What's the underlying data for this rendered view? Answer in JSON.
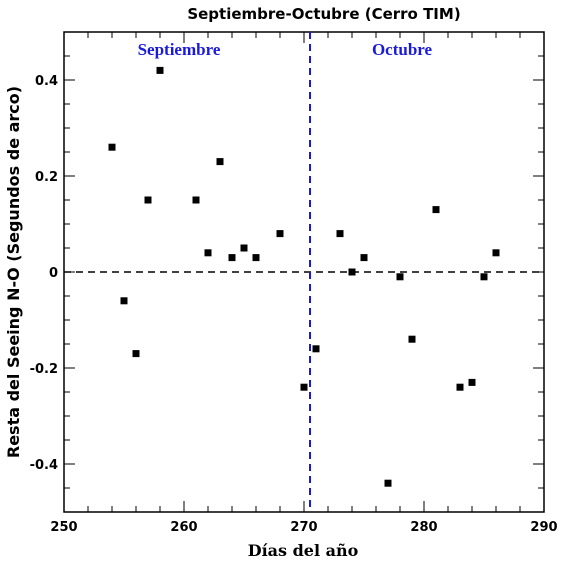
{
  "chart_data": {
    "type": "scatter",
    "title": "Septiembre-Octubre (Cerro TIM)",
    "xlabel": "Días del año",
    "ylabel": "Resta del Seeing N-O (Segundos de arco)",
    "xlim": [
      250,
      290
    ],
    "ylim": [
      -0.5,
      0.5
    ],
    "xticks": [
      250,
      260,
      270,
      280,
      290
    ],
    "xtick_labels": [
      "250",
      "260",
      "270",
      "280",
      "290"
    ],
    "yticks": [
      -0.4,
      -0.2,
      0,
      0.2,
      0.4
    ],
    "ytick_labels": [
      "-0.4",
      "-0.2",
      "0",
      "0.2",
      "0.4"
    ],
    "grid": false,
    "reference_lines": {
      "horizontal": {
        "y": 0,
        "style": "dashed",
        "color": "#000000"
      },
      "vertical": {
        "x": 270.5,
        "style": "dashed",
        "color": "#1a1adb"
      }
    },
    "region_labels": [
      {
        "text": "Septiembre",
        "color": "#1a1adb"
      },
      {
        "text": "Octubre",
        "color": "#1a1adb"
      }
    ],
    "marker_color": "#000000",
    "points": [
      {
        "x": 254,
        "y": 0.26
      },
      {
        "x": 255,
        "y": -0.06
      },
      {
        "x": 256,
        "y": -0.17
      },
      {
        "x": 257,
        "y": 0.15
      },
      {
        "x": 258,
        "y": 0.42
      },
      {
        "x": 261,
        "y": 0.15
      },
      {
        "x": 262,
        "y": 0.04
      },
      {
        "x": 263,
        "y": 0.23
      },
      {
        "x": 264,
        "y": 0.03
      },
      {
        "x": 265,
        "y": 0.05
      },
      {
        "x": 266,
        "y": 0.03
      },
      {
        "x": 268,
        "y": 0.08
      },
      {
        "x": 270,
        "y": -0.24
      },
      {
        "x": 271,
        "y": -0.16
      },
      {
        "x": 273,
        "y": 0.08
      },
      {
        "x": 274,
        "y": 0.0
      },
      {
        "x": 275,
        "y": 0.03
      },
      {
        "x": 277,
        "y": -0.44
      },
      {
        "x": 278,
        "y": -0.01
      },
      {
        "x": 279,
        "y": -0.14
      },
      {
        "x": 281,
        "y": 0.13
      },
      {
        "x": 283,
        "y": -0.24
      },
      {
        "x": 284,
        "y": -0.23
      },
      {
        "x": 285,
        "y": -0.01
      },
      {
        "x": 286,
        "y": 0.04
      }
    ]
  }
}
